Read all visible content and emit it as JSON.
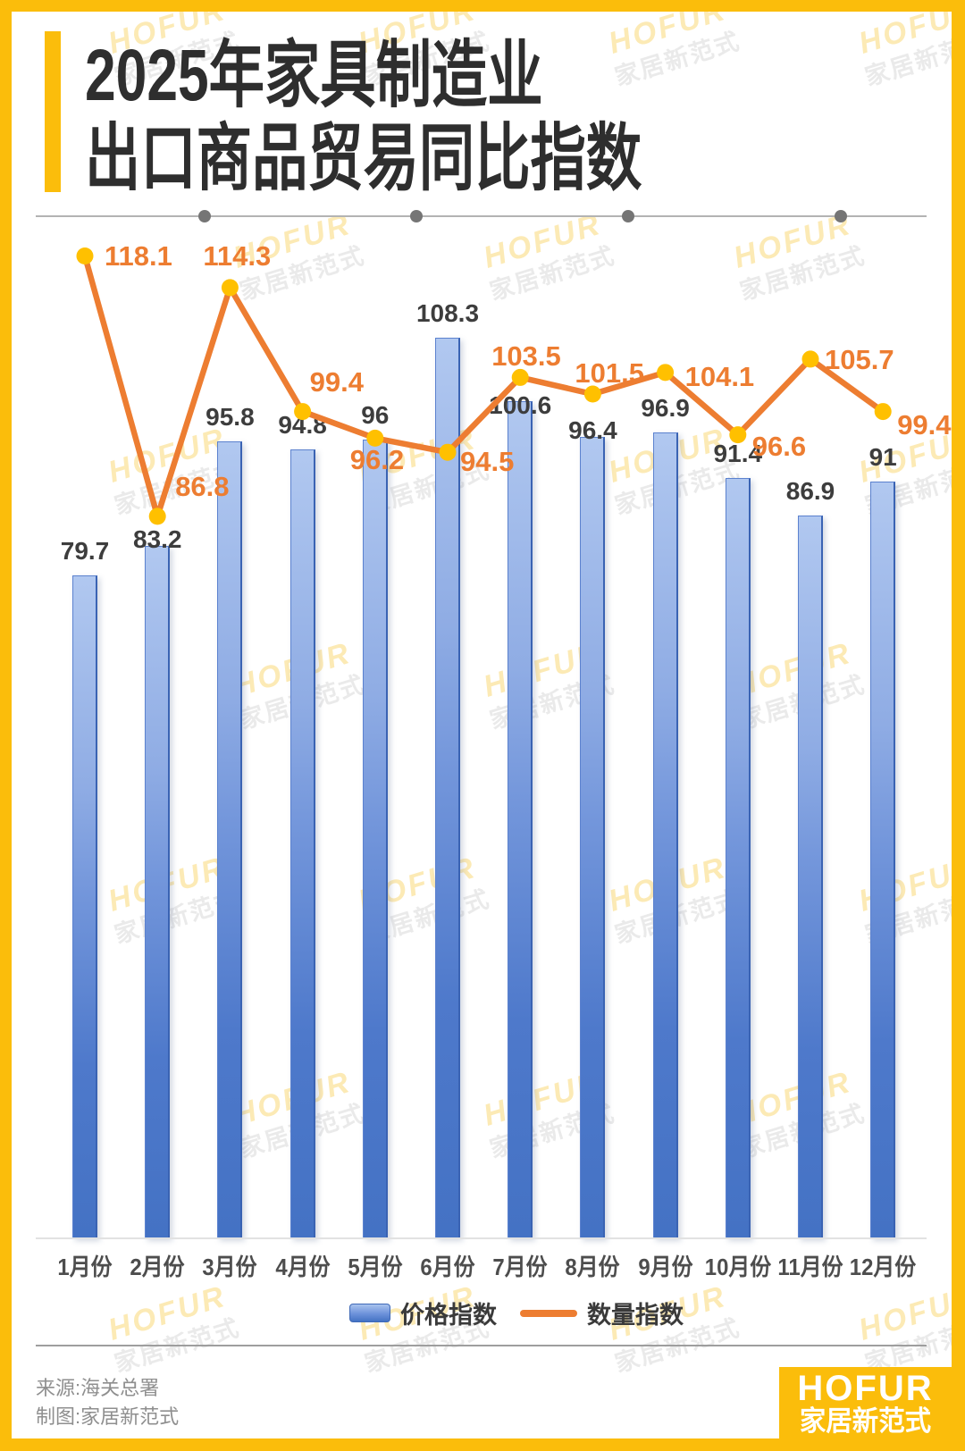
{
  "header": {
    "title_line1": "2025年家具制造业",
    "title_line2": "出口商品贸易同比指数"
  },
  "chart_data": {
    "type": "bar+line combo",
    "title": "2025年家具制造业出口商品贸易同比指数",
    "categories": [
      "1月份",
      "2月份",
      "3月份",
      "4月份",
      "5月份",
      "6月份",
      "7月份",
      "8月份",
      "9月份",
      "10月份",
      "11月份",
      "12月份"
    ],
    "series": [
      {
        "name": "价格指数",
        "type": "bar",
        "values": [
          79.7,
          83.2,
          95.8,
          94.8,
          96,
          108.3,
          100.6,
          96.4,
          96.9,
          91.4,
          86.9,
          91
        ],
        "color_top": "#A9C3EE",
        "color_bottom": "#4472C4"
      },
      {
        "name": "数量指数",
        "type": "line",
        "values": [
          118.1,
          86.8,
          114.3,
          99.4,
          96.2,
          94.5,
          103.5,
          101.5,
          104.1,
          96.6,
          105.7,
          99.4
        ],
        "color": "#ED7D31",
        "marker_color": "#FFC000"
      }
    ],
    "value_labels": true,
    "y_axis_visible": false,
    "ylim": [
      0,
      125
    ],
    "grid": false,
    "legend_position": "bottom"
  },
  "footer": {
    "source": "来源:海关总署",
    "credit": "制图:家居新范式"
  },
  "logo": {
    "brand": "HOFUR",
    "sub": "家居新范式"
  },
  "watermark": {
    "line1": "HOFUR",
    "line2": "家居新范式"
  },
  "colors": {
    "accent_yellow": "#FBBD0B",
    "bar_gradient_top": "#A9C3EE",
    "bar_gradient_bottom": "#4472C4",
    "line_orange": "#ED7D31",
    "marker_yellow": "#FFC000",
    "bar_label_text": "#3D3D3D",
    "line_label_text": "#ED7D31",
    "divider_gray": "#B3B3B3",
    "footer_text": "#8F8F8F"
  }
}
